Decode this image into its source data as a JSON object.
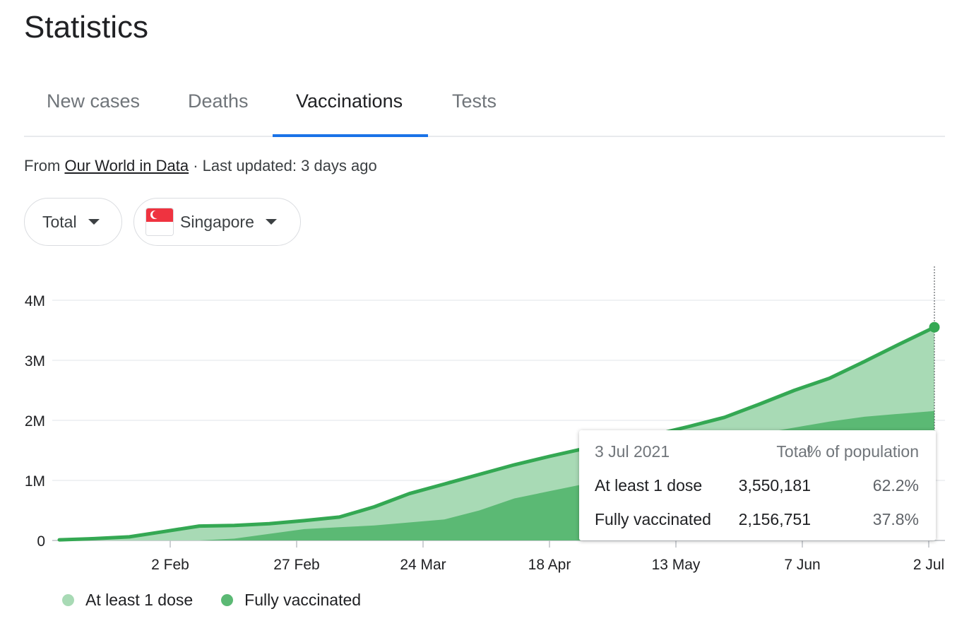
{
  "header": {
    "title": "Statistics"
  },
  "tabs": [
    {
      "label": "New cases"
    },
    {
      "label": "Deaths"
    },
    {
      "label": "Vaccinations"
    },
    {
      "label": "Tests"
    }
  ],
  "source": {
    "prefix": "From",
    "link": "Our World in Data",
    "updated": "· Last updated: 3 days ago"
  },
  "filters": {
    "total": "Total",
    "country": "Singapore"
  },
  "colors": {
    "dose1_fill": "#a8dab5",
    "full_fill": "#5bb974",
    "line": "#34a853",
    "accent": "#1a73e8"
  },
  "tooltip": {
    "date": "3 Jul 2021",
    "col_total": "Total",
    "col_pct": "% of population",
    "rows": [
      {
        "label": "At least 1 dose",
        "total": "3,550,181",
        "pct": "62.2%"
      },
      {
        "label": "Fully vaccinated",
        "total": "2,156,751",
        "pct": "37.8%"
      }
    ]
  },
  "chart_data": {
    "type": "area",
    "x_ticks": [
      "2 Feb",
      "27 Feb",
      "24 Mar",
      "18 Apr",
      "13 May",
      "7 Jun",
      "2 Jul"
    ],
    "y_ticks": [
      "0",
      "1M",
      "2M",
      "3M",
      "4M"
    ],
    "ylim": [
      0,
      4000000
    ],
    "grid": true,
    "legend_position": "bottom-left",
    "x": [
      "11 Jan",
      "18 Jan",
      "25 Jan",
      "1 Feb",
      "8 Feb",
      "15 Feb",
      "22 Feb",
      "1 Mar",
      "8 Mar",
      "15 Mar",
      "22 Mar",
      "29 Mar",
      "5 Apr",
      "12 Apr",
      "19 Apr",
      "26 Apr",
      "3 May",
      "10 May",
      "17 May",
      "24 May",
      "31 May",
      "7 Jun",
      "14 Jun",
      "21 Jun",
      "28 Jun",
      "3 Jul"
    ],
    "series": [
      {
        "name": "At least 1 dose",
        "values": [
          10000,
          30000,
          60000,
          150000,
          240000,
          250000,
          280000,
          330000,
          390000,
          560000,
          780000,
          940000,
          1100000,
          1260000,
          1400000,
          1530000,
          1650000,
          1760000,
          1900000,
          2050000,
          2270000,
          2500000,
          2700000,
          2980000,
          3270000,
          3550181
        ]
      },
      {
        "name": "Fully vaccinated",
        "values": [
          0,
          0,
          0,
          0,
          0,
          30000,
          110000,
          190000,
          220000,
          250000,
          300000,
          350000,
          500000,
          700000,
          820000,
          940000,
          1080000,
          1230000,
          1420000,
          1620000,
          1780000,
          1880000,
          1980000,
          2060000,
          2110000,
          2156751
        ]
      }
    ]
  },
  "legend": [
    {
      "label": "At least 1 dose"
    },
    {
      "label": "Fully vaccinated"
    }
  ]
}
